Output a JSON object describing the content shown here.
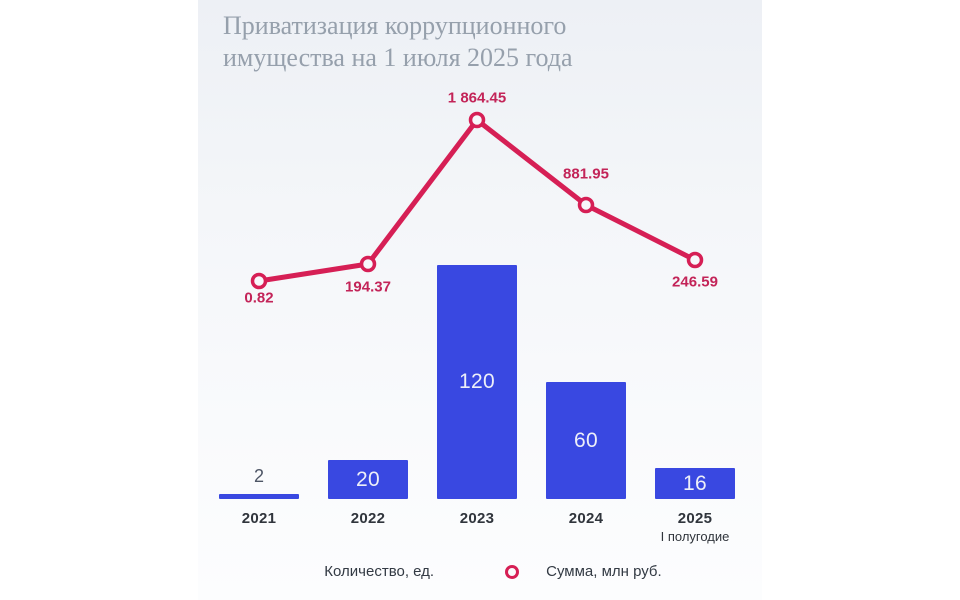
{
  "title": "Приватизация коррупционного имущества на 1 июля 2025 года",
  "chart_data": {
    "type": "bar",
    "subtype": "bar-with-line-overlay",
    "title": "Приватизация коррупционного имущества на 1 июля 2025 года",
    "categories": [
      "2021",
      "2022",
      "2023",
      "2024",
      "2025"
    ],
    "category_sublabels": [
      "",
      "",
      "",
      "",
      "I полугодие"
    ],
    "series": [
      {
        "name": "Количество, ед.",
        "type": "bar",
        "values": [
          2,
          20,
          120,
          60,
          16
        ],
        "color": "#3948e1"
      },
      {
        "name": "Сумма, млн руб.",
        "type": "line",
        "values": [
          0.82,
          194.37,
          1864.45,
          881.95,
          246.59
        ],
        "value_labels": [
          "0.82",
          "194.37",
          "1 864.45",
          "881.95",
          "246.59"
        ],
        "color": "#d61f55",
        "label_color": "#c32458"
      }
    ],
    "grid": false,
    "legend_position": "bottom",
    "ylim_bar": [
      0,
      130
    ],
    "ylim_line": [
      0,
      2000
    ],
    "label_positions": [
      "below",
      "below",
      "above",
      "above",
      "below"
    ]
  },
  "legend": {
    "items": [
      {
        "label": "Количество, ед.",
        "marker": "dot",
        "color": "#3948e1"
      },
      {
        "label": "Сумма, млн руб.",
        "marker": "line-dot",
        "color": "#d61f55"
      }
    ]
  },
  "colors": {
    "bar": "#3948e1",
    "bar_text": "#edeff8",
    "bar_small_label": "#4d5565",
    "line": "#d61f55",
    "line_label": "#c32458",
    "marker_fill": "#f7f8fb",
    "axis_label": "#30353c",
    "title": "#96a0ac"
  }
}
